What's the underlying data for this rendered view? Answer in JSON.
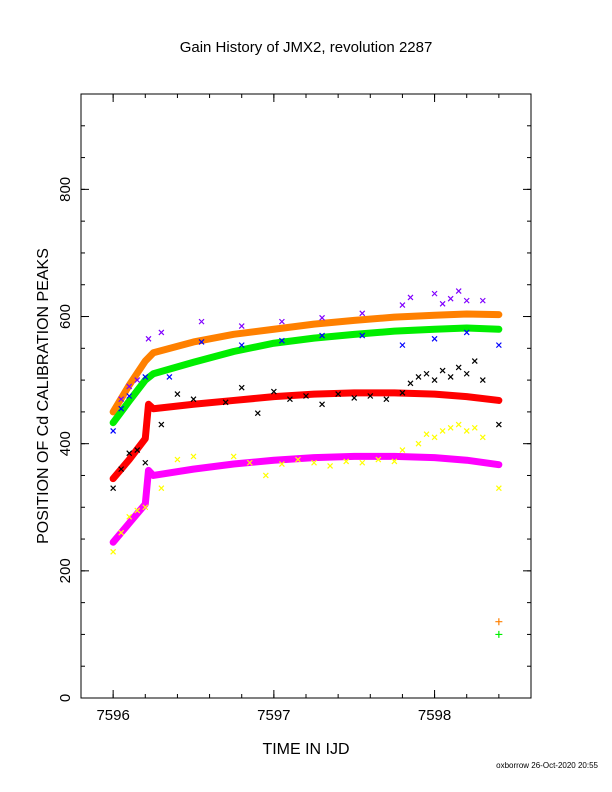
{
  "chart_data": {
    "type": "scatter",
    "title": "Gain History of JMX2, revolution 2287",
    "xlabel": "TIME IN IJD",
    "ylabel": "POSITION OF Cd CALIBRATION PEAKS",
    "xlim": [
      7595.8,
      7598.6
    ],
    "ylim": [
      0,
      950
    ],
    "xticks": [
      7596,
      7597,
      7598
    ],
    "yticks": [
      0,
      200,
      400,
      600,
      800
    ],
    "grid": false,
    "legend": "none",
    "series": [
      {
        "color": "#ff8000",
        "marker": "line",
        "x": [
          7596.0,
          7596.1,
          7596.2,
          7596.25,
          7596.5,
          7596.75,
          7597.0,
          7597.25,
          7597.5,
          7597.75,
          7598.0,
          7598.2,
          7598.4
        ],
        "y": [
          450,
          492,
          530,
          543,
          560,
          572,
          580,
          588,
          594,
          599,
          602,
          604,
          603
        ]
      },
      {
        "color": "#00ee00",
        "marker": "line",
        "x": [
          7596.0,
          7596.1,
          7596.2,
          7596.25,
          7596.5,
          7596.75,
          7597.0,
          7597.25,
          7597.5,
          7597.75,
          7598.0,
          7598.2,
          7598.4
        ],
        "y": [
          433,
          467,
          500,
          510,
          528,
          545,
          558,
          566,
          572,
          577,
          580,
          582,
          580
        ]
      },
      {
        "color": "#ff0000",
        "marker": "line",
        "x": [
          7596.0,
          7596.1,
          7596.2,
          7596.22,
          7596.25,
          7596.5,
          7596.75,
          7597.0,
          7597.25,
          7597.5,
          7597.75,
          7598.0,
          7598.2,
          7598.4
        ],
        "y": [
          345,
          375,
          408,
          462,
          455,
          462,
          468,
          474,
          478,
          480,
          480,
          478,
          474,
          468
        ]
      },
      {
        "color": "#ff00ff",
        "marker": "line",
        "x": [
          7596.0,
          7596.1,
          7596.2,
          7596.22,
          7596.25,
          7596.5,
          7596.75,
          7597.0,
          7597.25,
          7597.5,
          7597.75,
          7598.0,
          7598.2,
          7598.4
        ],
        "y": [
          245,
          275,
          305,
          358,
          350,
          360,
          368,
          374,
          378,
          380,
          380,
          378,
          374,
          367
        ]
      },
      {
        "color": "#8000ff",
        "marker": "x",
        "x": [
          7596.05,
          7596.1,
          7596.15,
          7596.22,
          7596.3,
          7596.55,
          7596.8,
          7597.05,
          7597.3,
          7597.55,
          7597.8,
          7597.85,
          7598.0,
          7598.05,
          7598.1,
          7598.15,
          7598.2,
          7598.3
        ],
        "y": [
          470,
          490,
          500,
          565,
          575,
          592,
          585,
          592,
          598,
          605,
          618,
          630,
          636,
          620,
          628,
          640,
          625,
          625
        ]
      },
      {
        "color": "#0000ff",
        "marker": "x",
        "x": [
          7596.0,
          7596.05,
          7596.1,
          7596.2,
          7596.35,
          7596.55,
          7596.8,
          7597.05,
          7597.3,
          7597.55,
          7597.8,
          7598.0,
          7598.2,
          7598.4
        ],
        "y": [
          420,
          455,
          475,
          505,
          505,
          560,
          555,
          562,
          570,
          570,
          555,
          565,
          575,
          555
        ]
      },
      {
        "color": "#000000",
        "marker": "x",
        "x": [
          7596.0,
          7596.05,
          7596.1,
          7596.15,
          7596.2,
          7596.3,
          7596.4,
          7596.5,
          7596.7,
          7596.8,
          7596.9,
          7597.0,
          7597.1,
          7597.2,
          7597.3,
          7597.4,
          7597.5,
          7597.6,
          7597.7,
          7597.8,
          7597.85,
          7597.9,
          7597.95,
          7598.0,
          7598.05,
          7598.1,
          7598.15,
          7598.2,
          7598.25,
          7598.3,
          7598.4
        ],
        "y": [
          330,
          360,
          385,
          390,
          370,
          430,
          478,
          470,
          465,
          488,
          448,
          482,
          470,
          475,
          462,
          478,
          472,
          475,
          470,
          480,
          495,
          505,
          510,
          500,
          515,
          505,
          520,
          510,
          530,
          500,
          430
        ]
      },
      {
        "color": "#ffff00",
        "marker": "x",
        "x": [
          7596.0,
          7596.05,
          7596.1,
          7596.15,
          7596.2,
          7596.3,
          7596.4,
          7596.5,
          7596.75,
          7596.85,
          7596.95,
          7597.05,
          7597.15,
          7597.25,
          7597.35,
          7597.45,
          7597.55,
          7597.65,
          7597.75,
          7597.8,
          7597.9,
          7597.95,
          7598.0,
          7598.05,
          7598.1,
          7598.15,
          7598.2,
          7598.25,
          7598.3,
          7598.4
        ],
        "y": [
          230,
          260,
          285,
          295,
          300,
          330,
          375,
          380,
          380,
          370,
          350,
          368,
          375,
          370,
          365,
          372,
          370,
          375,
          372,
          390,
          400,
          415,
          410,
          420,
          425,
          430,
          420,
          425,
          410,
          330
        ]
      },
      {
        "color": "#ff8000",
        "marker": "+",
        "x": [
          7598.4
        ],
        "y": [
          120
        ]
      },
      {
        "color": "#00ee00",
        "marker": "+",
        "x": [
          7598.4
        ],
        "y": [
          100
        ]
      }
    ]
  },
  "footer": {
    "credit": "oxborrow 26-Oct-2020 20:55"
  }
}
